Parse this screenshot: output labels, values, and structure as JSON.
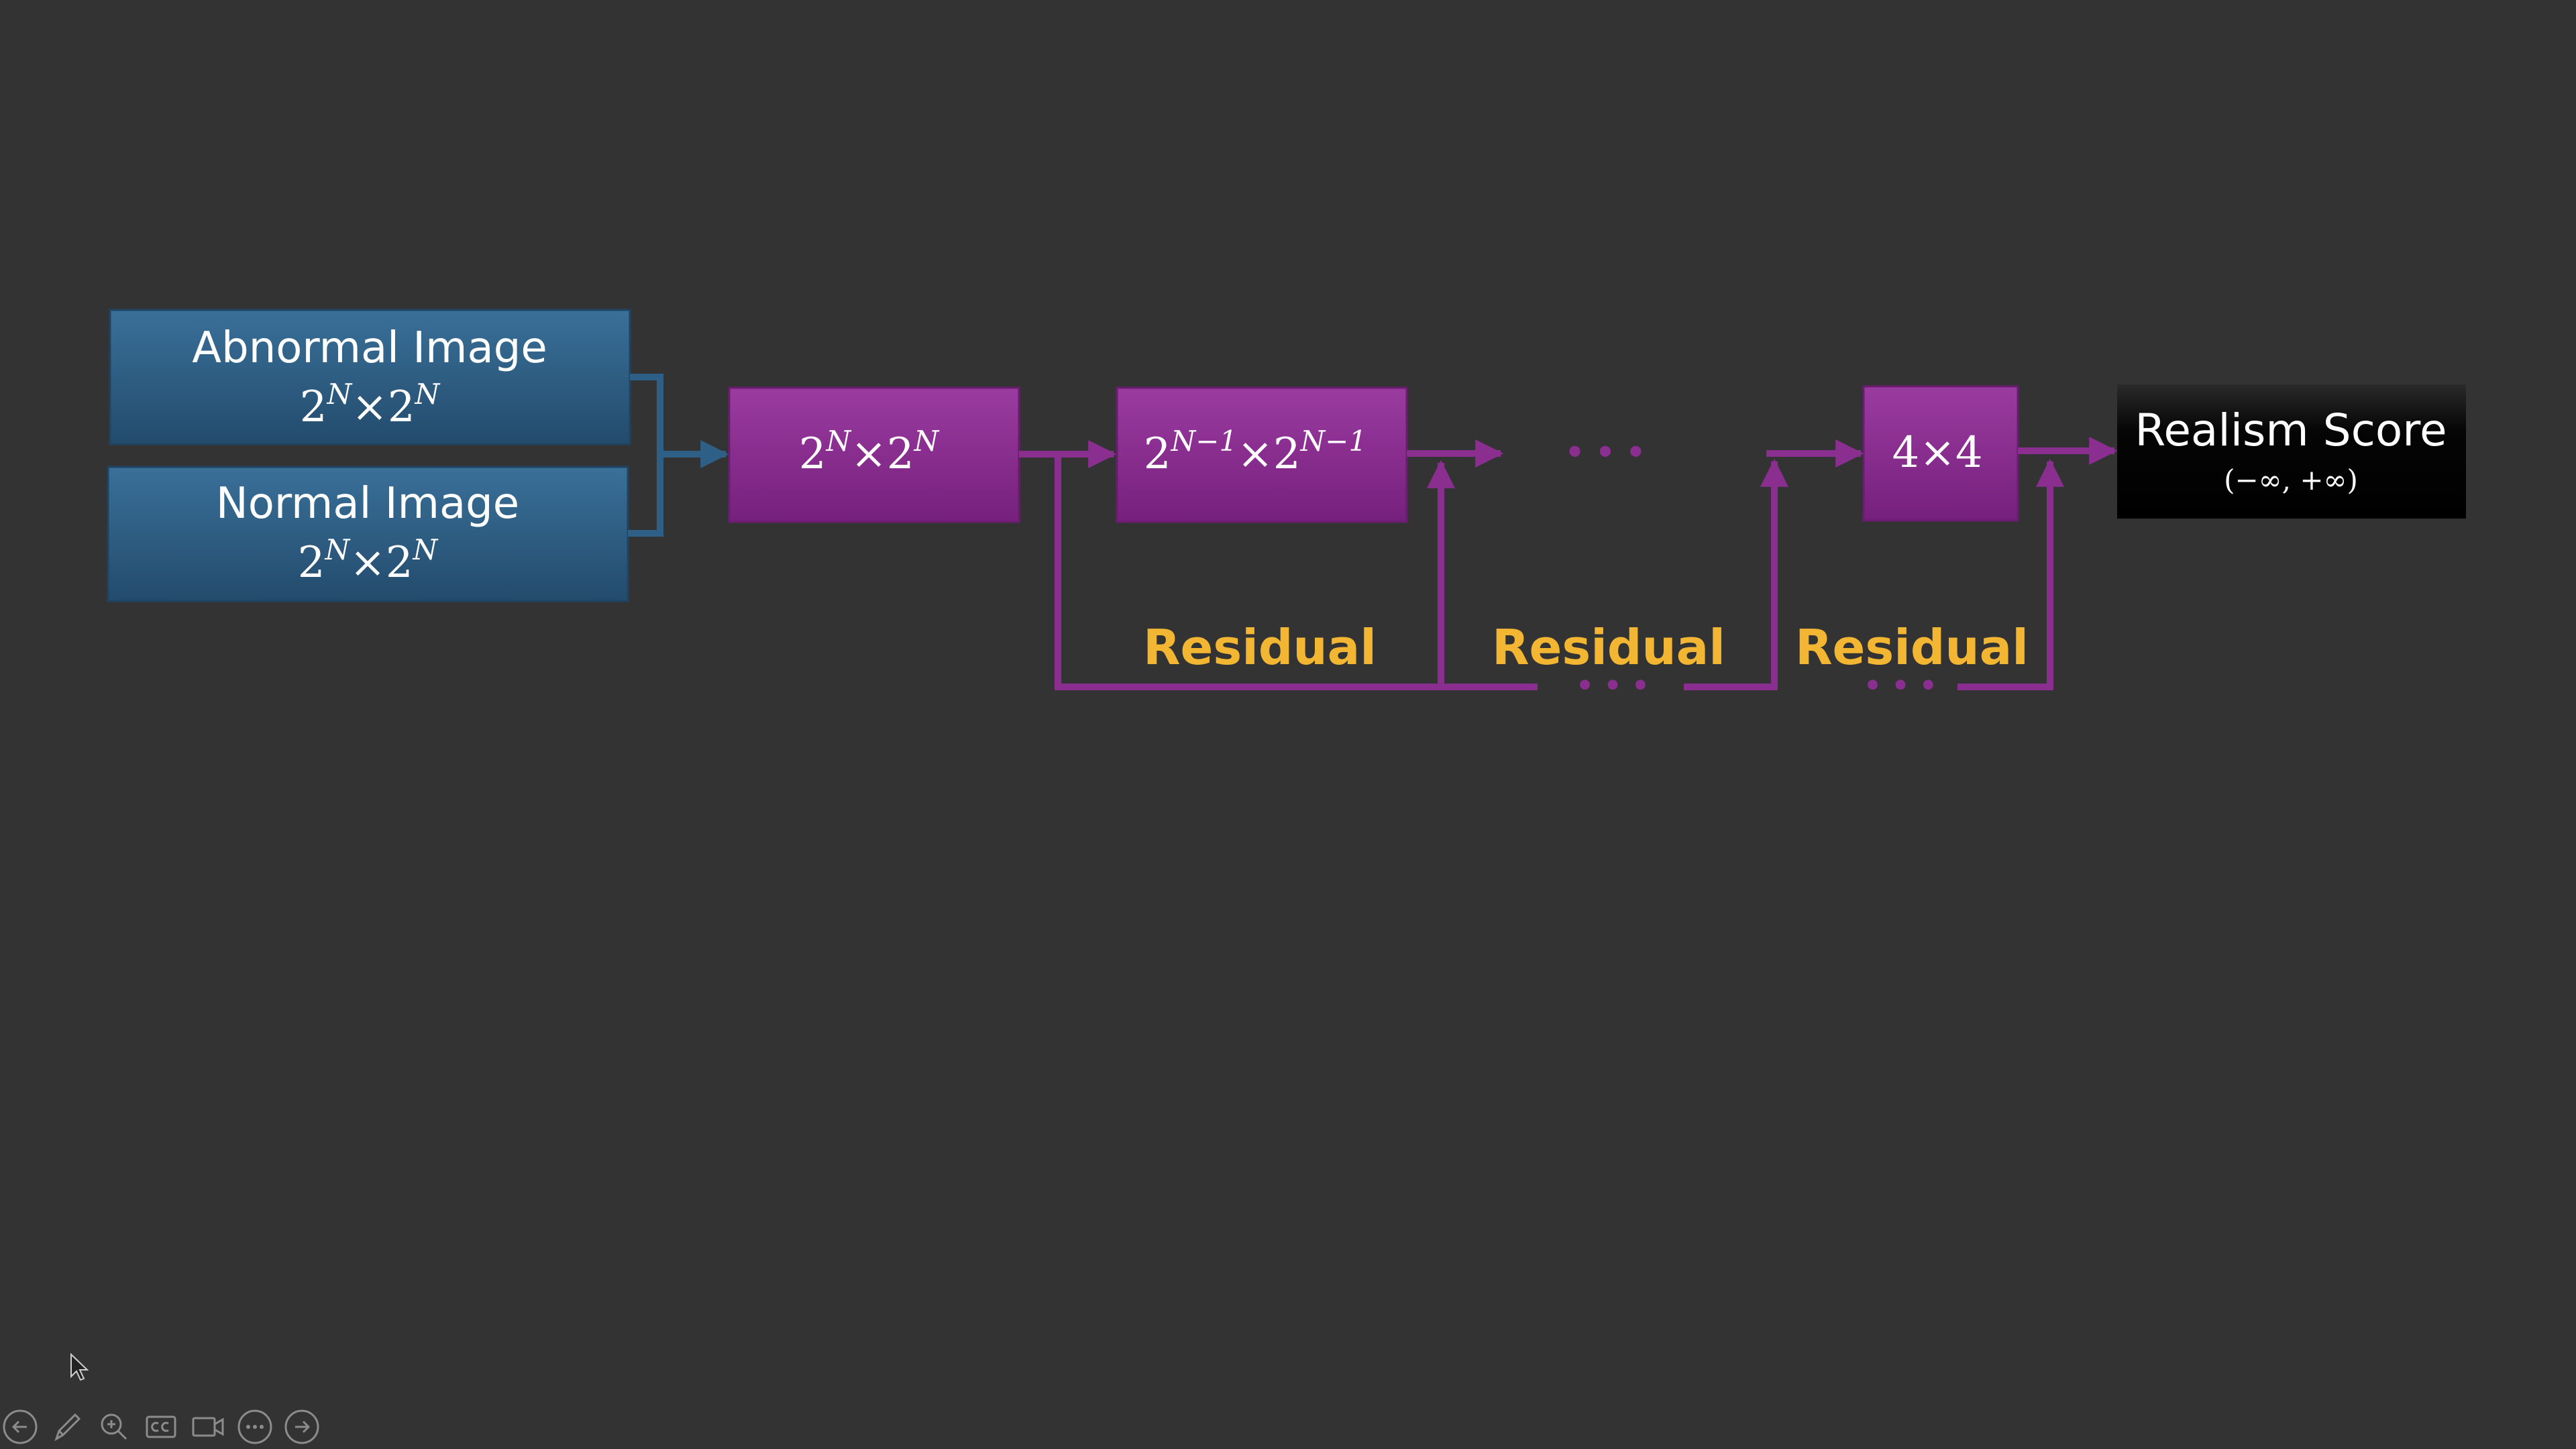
{
  "diagram": {
    "inputs": [
      {
        "title": "Abnormal Image",
        "size_base": "2",
        "size_exp": "N",
        "times": "×"
      },
      {
        "title": "Normal Image",
        "size_base": "2",
        "size_exp": "N",
        "times": "×"
      }
    ],
    "blocks": [
      {
        "base": "2",
        "exp": "N",
        "times": "×"
      },
      {
        "base": "2",
        "exp": "N−1",
        "times": "×"
      },
      {
        "label": "4×4"
      }
    ],
    "ellipsis": "• • •",
    "residual_label": "Residual",
    "output": {
      "title": "Realism Score",
      "range": "(−∞, +∞)"
    },
    "colors": {
      "background": "#333333",
      "input_box": "#2e5f86",
      "block": "#862a8c",
      "arrow_input": "#2e5f86",
      "arrow_block": "#8a2e90",
      "residual_text": "#f2b632",
      "output_box": "#0a0a0a"
    }
  },
  "toolbar": {
    "icons": [
      "back-arrow-icon",
      "pen-icon",
      "zoom-icon",
      "captions-icon",
      "camera-icon",
      "more-icon",
      "forward-arrow-icon"
    ]
  }
}
